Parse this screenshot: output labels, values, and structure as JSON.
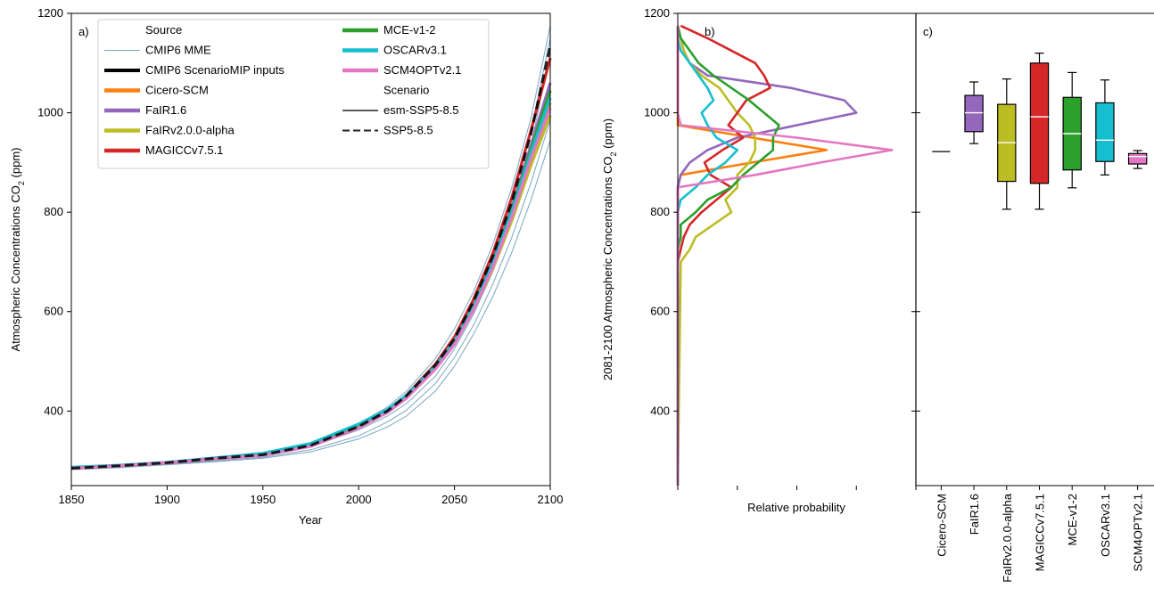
{
  "chart_data": [
    {
      "panel": "a)",
      "type": "line",
      "xlabel": "Year",
      "ylabel": "Atmospheric Concentrations CO",
      "ylabel_sub": "2",
      "ylabel_unit": " (ppm)",
      "xlim": [
        1850,
        2100
      ],
      "ylim": [
        250,
        1200
      ],
      "xticks": [
        1850,
        1900,
        1950,
        2000,
        2050,
        2100
      ],
      "yticks": [
        400,
        600,
        800,
        1000,
        1200
      ],
      "x": [
        1850,
        1875,
        1900,
        1925,
        1950,
        1975,
        2000,
        2015,
        2025,
        2040,
        2050,
        2060,
        2070,
        2080,
        2090,
        2100
      ],
      "mme_members": [
        [
          285,
          290,
          296,
          305,
          315,
          335,
          375,
          408,
          440,
          505,
          565,
          640,
          735,
          850,
          990,
          1175
        ],
        [
          286,
          290,
          296,
          305,
          314,
          332,
          370,
          402,
          432,
          495,
          552,
          625,
          715,
          830,
          965,
          1150
        ],
        [
          285,
          289,
          295,
          303,
          312,
          330,
          368,
          398,
          425,
          485,
          540,
          612,
          700,
          810,
          935,
          1120
        ],
        [
          284,
          288,
          294,
          302,
          310,
          328,
          362,
          390,
          415,
          470,
          525,
          595,
          680,
          785,
          900,
          1060
        ],
        [
          283,
          287,
          293,
          300,
          307,
          322,
          350,
          378,
          402,
          455,
          508,
          573,
          655,
          750,
          860,
          985
        ],
        [
          282,
          286,
          292,
          298,
          305,
          318,
          344,
          368,
          390,
          440,
          490,
          555,
          630,
          720,
          825,
          945
        ]
      ],
      "series": [
        {
          "name": "CMIP6 ScenarioMIP inputs",
          "scenario": "SSP5-8.5",
          "values": [
            285,
            290,
            296,
            305,
            312,
            331,
            369,
            400,
            431,
            492,
            545,
            621,
            711,
            821,
            959,
            1135
          ]
        },
        {
          "name": "Cicero-SCM",
          "scenario": "esm-SSP5-8.5",
          "values": [
            285,
            290,
            296,
            304,
            312,
            330,
            368,
            399,
            428,
            486,
            537,
            608,
            694,
            797,
            917,
            1020
          ]
        },
        {
          "name": "FaIR1.6",
          "scenario": "esm-SSP5-8.5",
          "values": [
            285,
            290,
            296,
            304,
            312,
            330,
            369,
            400,
            430,
            490,
            543,
            616,
            704,
            810,
            935,
            1060
          ]
        },
        {
          "name": "FaIRv2.0.0-alpha",
          "scenario": "esm-SSP5-8.5",
          "values": [
            285,
            290,
            296,
            305,
            313,
            333,
            372,
            401,
            430,
            486,
            536,
            604,
            686,
            783,
            895,
            995
          ]
        },
        {
          "name": "MAGICCv7.5.1",
          "scenario": "esm-SSP5-8.5",
          "values": [
            285,
            290,
            296,
            304,
            312,
            331,
            369,
            401,
            432,
            494,
            549,
            625,
            717,
            830,
            965,
            1110
          ]
        },
        {
          "name": "MCE-v1-2",
          "scenario": "esm-SSP5-8.5",
          "values": [
            285,
            290,
            296,
            304,
            312,
            331,
            368,
            400,
            429,
            488,
            540,
            612,
            699,
            804,
            927,
            1045
          ]
        },
        {
          "name": "OSCARv3.1",
          "scenario": "esm-SSP5-8.5",
          "values": [
            287,
            291,
            297,
            306,
            315,
            335,
            374,
            403,
            432,
            490,
            541,
            612,
            697,
            801,
            921,
            1030
          ]
        },
        {
          "name": "SCM4OPTv2.1",
          "scenario": "esm-SSP5-8.5",
          "values": [
            285,
            290,
            296,
            304,
            311,
            329,
            366,
            397,
            426,
            484,
            534,
            604,
            689,
            791,
            909,
            1010
          ]
        }
      ],
      "legend": {
        "placement": "top-left",
        "source_title": "Source",
        "mme_label": "CMIP6 MME",
        "scenario_title": "Scenario",
        "scenario_solid": "esm-SSP5-8.5",
        "scenario_dashed": "SSP5-8.5"
      }
    },
    {
      "panel": "b)",
      "type": "line",
      "orientation": "horizontal-density",
      "xlabel": "Relative probability",
      "ylabel": "2081-2100 Atmospheric Concentrations CO",
      "ylabel_sub": "2",
      "ylabel_unit": " (ppm)",
      "ylim": [
        250,
        1200
      ],
      "yticks": [
        400,
        600,
        800,
        1000,
        1200
      ],
      "xlim": [
        0,
        4
      ],
      "xticks": [
        0,
        1,
        2,
        3,
        4
      ],
      "density_y": [
        250,
        700,
        725,
        750,
        775,
        800,
        825,
        850,
        875,
        900,
        925,
        950,
        975,
        1000,
        1025,
        1050,
        1075,
        1100,
        1125,
        1150,
        1175
      ],
      "series": [
        {
          "name": "Cicero-SCM",
          "values": [
            0,
            0,
            0,
            0,
            0,
            0,
            0,
            0,
            0.05,
            1.25,
            2.5,
            1.25,
            0,
            0,
            0,
            0,
            0,
            0,
            0,
            0,
            0
          ]
        },
        {
          "name": "FaIR1.6",
          "values": [
            0,
            0,
            0,
            0,
            0,
            0,
            0,
            0,
            0.05,
            0.2,
            0.5,
            1.0,
            2.0,
            3.0,
            2.8,
            1.9,
            0.5,
            0.2,
            0.1,
            0.05,
            0
          ]
        },
        {
          "name": "FaIRv2.0.0-alpha",
          "values": [
            0,
            0.05,
            0.2,
            0.3,
            0.6,
            0.9,
            0.8,
            1.0,
            1.0,
            1.2,
            1.3,
            1.3,
            1.2,
            1.0,
            0.85,
            0.7,
            0.4,
            0.2,
            0.1,
            0.05,
            0
          ]
        },
        {
          "name": "MAGICCv7.5.1",
          "values": [
            0,
            0,
            0.05,
            0.1,
            0.2,
            0.4,
            0.65,
            0.9,
            0.55,
            0.45,
            0.75,
            1.1,
            0.85,
            1.0,
            1.15,
            1.55,
            1.45,
            1.3,
            0.9,
            0.5,
            0.05
          ]
        },
        {
          "name": "MCE-v1-2",
          "values": [
            0,
            0,
            0,
            0.05,
            0.05,
            0.3,
            0.5,
            0.9,
            1.1,
            1.35,
            1.6,
            1.6,
            1.7,
            1.45,
            1.2,
            0.9,
            0.6,
            0.35,
            0.2,
            0.05,
            0
          ]
        },
        {
          "name": "OSCARv3.1",
          "values": [
            0,
            0,
            0,
            0,
            0,
            0,
            0.05,
            0.3,
            0.5,
            0.8,
            1.0,
            0.65,
            0.5,
            0.4,
            0.6,
            0.5,
            0.35,
            0.2,
            0.05,
            0,
            0
          ]
        },
        {
          "name": "SCM4OPTv2.1",
          "values": [
            0,
            0,
            0,
            0,
            0,
            0,
            0,
            0,
            1.3,
            2.4,
            3.6,
            2.0,
            0.05,
            0,
            0,
            0,
            0,
            0,
            0,
            0,
            0
          ]
        }
      ]
    },
    {
      "panel": "c)",
      "type": "box",
      "ylim": [
        250,
        1200
      ],
      "categories": [
        "Cicero-SCM",
        "FaIR1.6",
        "FaIRv2.0.0-alpha",
        "MAGICCv7.5.1",
        "MCE-v1-2",
        "OSCARv3.1",
        "SCM4OPTv2.1"
      ],
      "boxes": [
        {
          "whislo": 922,
          "q1": 922,
          "med": 922,
          "q3": 922,
          "whishi": 922
        },
        {
          "whislo": 938,
          "q1": 962,
          "med": 1000,
          "q3": 1035,
          "whishi": 1062
        },
        {
          "whislo": 806,
          "q1": 862,
          "med": 940,
          "q3": 1017,
          "whishi": 1068
        },
        {
          "whislo": 806,
          "q1": 858,
          "med": 992,
          "q3": 1100,
          "whishi": 1120
        },
        {
          "whislo": 849,
          "q1": 885,
          "med": 958,
          "q3": 1031,
          "whishi": 1081
        },
        {
          "whislo": 875,
          "q1": 902,
          "med": 945,
          "q3": 1020,
          "whishi": 1066
        },
        {
          "whislo": 888,
          "q1": 897,
          "med": 912,
          "q3": 918,
          "whishi": 924
        }
      ]
    }
  ],
  "colors": {
    "CMIP6 MME": "#7aa6c2",
    "CMIP6 ScenarioMIP inputs": "#000000",
    "Cicero-SCM": "#ff7f0e",
    "FaIR1.6": "#9467bd",
    "FaIRv2.0.0-alpha": "#bcbd22",
    "MAGICCv7.5.1": "#d62728",
    "MCE-v1-2": "#2ca02c",
    "OSCARv3.1": "#17becf",
    "SCM4OPTv2.1": "#e377c2"
  }
}
